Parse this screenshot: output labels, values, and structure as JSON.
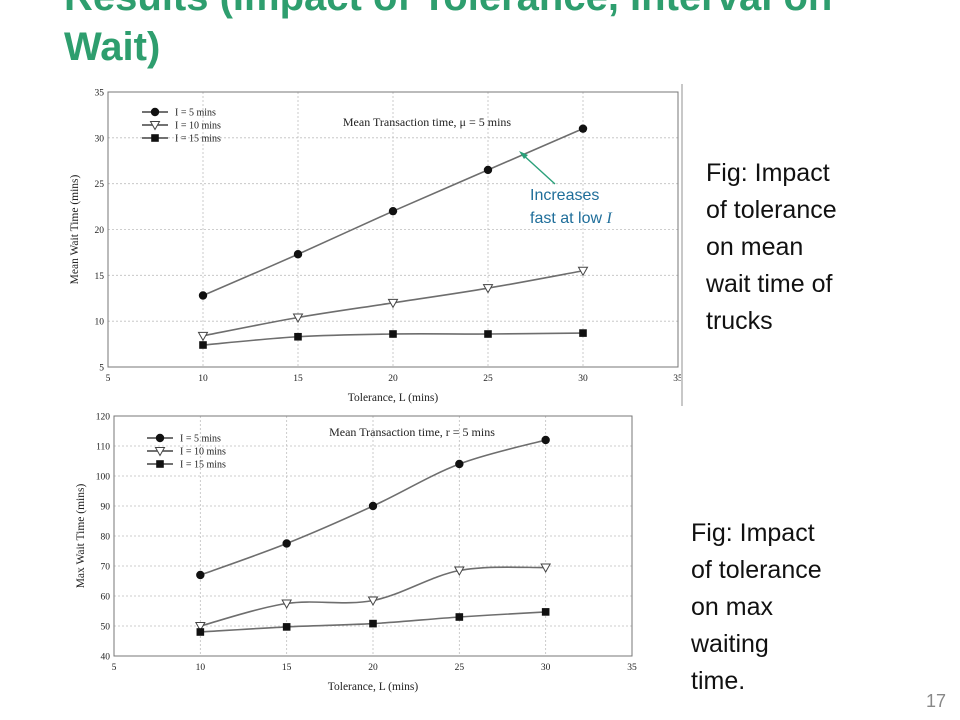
{
  "slide": {
    "title_line1": "Results  (Impact of Tolerance, Interval on",
    "title_line2": "Wait)",
    "page_number": "17"
  },
  "annotation": {
    "line1": "Increases",
    "line2": "fast at low ",
    "symbol": "I"
  },
  "captions": [
    {
      "lines": [
        "Fig: Impact",
        "of tolerance",
        "on mean",
        "wait time of",
        "trucks"
      ]
    },
    {
      "lines": [
        "Fig: Impact",
        "of tolerance",
        "on max",
        "waiting",
        "time."
      ]
    }
  ],
  "colors": {
    "title": "#2e9e6e",
    "annotation": "#1f6e9a",
    "arrow": "#2aa07a",
    "line": "#6e6e6e",
    "grid": "#bfbfbf"
  },
  "chart_data": [
    {
      "type": "line",
      "title": "Mean Transaction time, μ = 5 mins",
      "xlabel": "Tolerance, L (mins)",
      "ylabel": "Mean Wait Time (mins)",
      "xlim": [
        5,
        35
      ],
      "ylim": [
        5,
        35
      ],
      "xticks": [
        5,
        10,
        15,
        20,
        25,
        30,
        35
      ],
      "yticks": [
        5,
        10,
        15,
        20,
        25,
        30,
        35
      ],
      "grid": true,
      "legend_position": "top-left",
      "x": [
        10,
        15,
        20,
        25,
        30
      ],
      "series": [
        {
          "name": "I = 5 mins",
          "marker": "circle",
          "values": [
            12.8,
            17.3,
            22.0,
            26.5,
            31.0
          ]
        },
        {
          "name": "I = 10 mins",
          "marker": "triangle-down",
          "values": [
            8.4,
            10.4,
            12.0,
            13.6,
            15.5
          ]
        },
        {
          "name": "I = 15 mins",
          "marker": "square",
          "values": [
            7.4,
            8.3,
            8.6,
            8.6,
            8.7
          ]
        }
      ]
    },
    {
      "type": "line",
      "title": "Mean Transaction time, r = 5 mins",
      "xlabel": "Tolerance, L (mins)",
      "ylabel": "Max Wait Time (mins)",
      "xlim": [
        5,
        35
      ],
      "ylim": [
        40,
        120
      ],
      "xticks": [
        5,
        10,
        15,
        20,
        25,
        30,
        35
      ],
      "yticks": [
        40,
        50,
        60,
        70,
        80,
        90,
        100,
        110,
        120
      ],
      "grid": true,
      "legend_position": "top-left",
      "x": [
        10,
        15,
        20,
        25,
        30
      ],
      "series": [
        {
          "name": "I = 5 mins",
          "marker": "circle",
          "values": [
            67,
            77.5,
            90,
            104,
            112
          ]
        },
        {
          "name": "I = 10 mins",
          "marker": "triangle-down",
          "values": [
            50,
            57.5,
            58.5,
            68.5,
            69.5
          ]
        },
        {
          "name": "I = 15 mins",
          "marker": "square",
          "values": [
            48,
            49.7,
            50.8,
            53,
            54.7
          ]
        }
      ]
    }
  ]
}
